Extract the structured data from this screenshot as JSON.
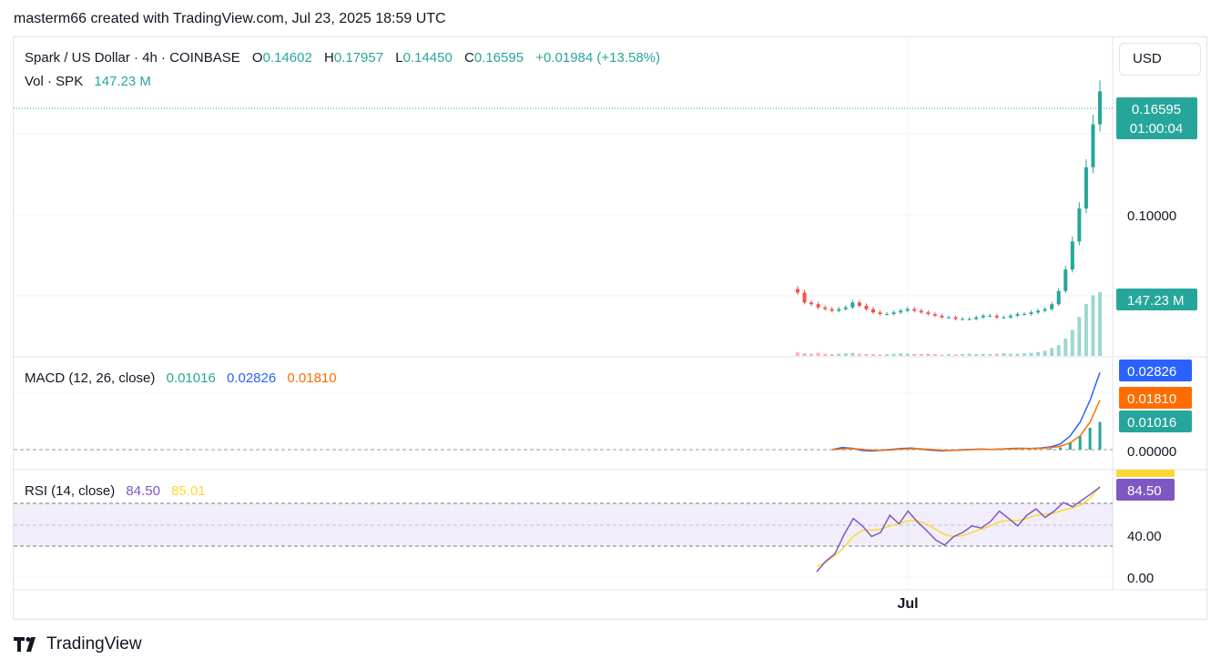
{
  "header": {
    "text": "masterm66 created with TradingView.com, Jul 23, 2025 18:59 UTC"
  },
  "main_pane": {
    "symbol": "Spark / US Dollar · 4h · COINBASE",
    "open_label": "O",
    "open": "0.14602",
    "high_label": "H",
    "high": "0.17957",
    "low_label": "L",
    "low": "0.14450",
    "close_label": "C",
    "close": "0.16595",
    "change": "+0.01984 (+13.58%)",
    "volume_label": "Vol · SPK",
    "volume": "147.23 M"
  },
  "macd_pane": {
    "label": "MACD (12, 26, close)",
    "histogram": "0.01016",
    "macd": "0.02826",
    "signal": "0.01810"
  },
  "rsi_pane": {
    "label": "RSI (14, close)",
    "rsi": "84.50",
    "rsi_ma": "85.01"
  },
  "price_axis": {
    "currency_button": "USD",
    "price_tag": "0.16595",
    "countdown": "01:00:04",
    "tick_0": "0.10000",
    "volume_tag": "147.23 M",
    "macd_tag_1": "0.02826",
    "macd_tag_2": "0.01810",
    "macd_tag_3": "0.01016",
    "macd_zero": "0.00000",
    "rsi_tag": "84.50",
    "rsi_tick_1": "40.00",
    "rsi_tick_2": "0.00"
  },
  "time_axis": {
    "label_0": "Jul"
  },
  "footer": {
    "brand": "TradingView"
  },
  "colors": {
    "up": "#26a69a",
    "down": "#ef5350",
    "macd": "#2962ff",
    "signal": "#ff6d00",
    "rsi": "#7e57c2",
    "rsi_ma": "#fdd835",
    "rsi_band": "#7e57c2"
  },
  "chart_data": [
    {
      "type": "candlestick",
      "title": "Spark / US Dollar · 4h · COINBASE",
      "x_label_ticks": [
        "Jul"
      ],
      "y_ticks": [
        "0.10000"
      ],
      "last": {
        "open": 0.14602,
        "high": 0.17957,
        "low": 0.1445,
        "close": 0.16595
      },
      "close_series": [
        0.044,
        0.038,
        0.037,
        0.035,
        0.034,
        0.033,
        0.034,
        0.035,
        0.038,
        0.036,
        0.034,
        0.032,
        0.031,
        0.031,
        0.032,
        0.033,
        0.034,
        0.033,
        0.032,
        0.031,
        0.03,
        0.029,
        0.029,
        0.028,
        0.028,
        0.028,
        0.029,
        0.03,
        0.03,
        0.029,
        0.029,
        0.03,
        0.031,
        0.031,
        0.032,
        0.033,
        0.034,
        0.037,
        0.045,
        0.058,
        0.075,
        0.095,
        0.12,
        0.146,
        0.166
      ],
      "volume_series": [
        8,
        6,
        5,
        7,
        5,
        4,
        5,
        6,
        7,
        5,
        4,
        4,
        3,
        4,
        5,
        6,
        5,
        4,
        4,
        5,
        4,
        3,
        4,
        3,
        4,
        5,
        4,
        5,
        4,
        5,
        6,
        5,
        5,
        6,
        7,
        9,
        12,
        18,
        25,
        40,
        60,
        90,
        120,
        140,
        147.23
      ],
      "volume_unit": "M"
    },
    {
      "type": "line",
      "title": "MACD (12, 26, close)",
      "series": [
        {
          "name": "MACD",
          "values": [
            0,
            0.0008,
            0.0005,
            -0.0003,
            -0.0005,
            -0.0002,
            0.0001,
            0.0004,
            0.0006,
            0.0002,
            -0.0002,
            -0.0004,
            -0.0003,
            -0.0001,
            0.0001,
            0.0002,
            0.0001,
            0.0002,
            0.0004,
            0.0005,
            0.0004,
            0.0006,
            0.001,
            0.002,
            0.005,
            0.01,
            0.018,
            0.02826
          ]
        },
        {
          "name": "Signal",
          "values": [
            0,
            0.0003,
            0.0004,
            0.0001,
            -0.0002,
            -0.0003,
            -0.0001,
            0.0002,
            0.0004,
            0.0003,
            0.0001,
            -0.0002,
            -0.0003,
            -0.0002,
            0,
            0.0001,
            0.0001,
            0.0002,
            0.0003,
            0.0004,
            0.0004,
            0.0005,
            0.0007,
            0.0012,
            0.0025,
            0.005,
            0.01,
            0.0181
          ]
        },
        {
          "name": "Histogram",
          "values": [
            0,
            0.0005,
            0.0001,
            -0.0004,
            -0.0003,
            0.0001,
            0.0002,
            0.0002,
            0.0002,
            -0.0001,
            -0.0003,
            -0.0002,
            0,
            0.0001,
            0.0001,
            0.0001,
            0,
            0,
            0.0001,
            0.0001,
            0,
            0.0001,
            0.0003,
            0.0008,
            0.0025,
            0.005,
            0.008,
            0.01016
          ]
        }
      ],
      "y_ticks": [
        "0.00000"
      ]
    },
    {
      "type": "line",
      "title": "RSI (14, close)",
      "series": [
        {
          "name": "RSI",
          "values": [
            5,
            15,
            22,
            40,
            55,
            48,
            38,
            42,
            58,
            50,
            62,
            52,
            44,
            35,
            30,
            38,
            42,
            48,
            46,
            52,
            62,
            55,
            48,
            58,
            64,
            56,
            62,
            70,
            66,
            72,
            78,
            84.5
          ]
        },
        {
          "name": "RSI MA",
          "values": [
            10,
            14,
            20,
            28,
            38,
            44,
            44,
            45,
            48,
            50,
            53,
            53,
            50,
            45,
            40,
            38,
            39,
            42,
            45,
            48,
            52,
            53,
            53,
            55,
            58,
            59,
            60,
            63,
            65,
            68,
            75,
            85.01
          ]
        }
      ],
      "y_ticks": [
        "40.00",
        "0.00"
      ],
      "band": [
        30,
        70
      ],
      "ylim": [
        0,
        100
      ]
    }
  ]
}
